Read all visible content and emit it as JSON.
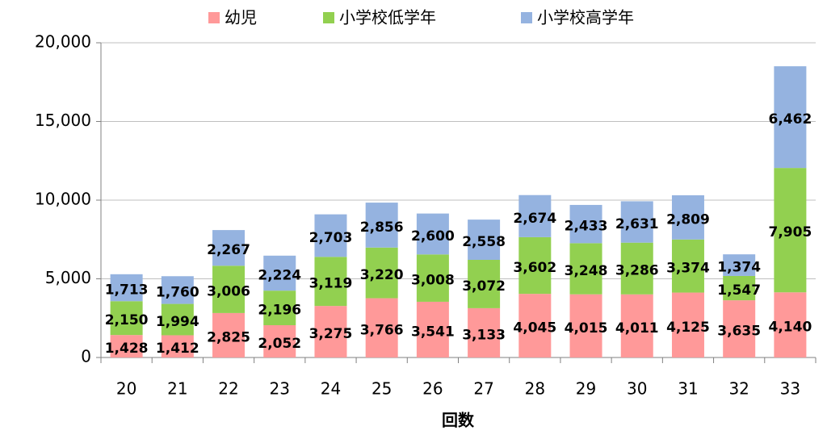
{
  "chart_data": {
    "type": "stacked_bar",
    "x_label": "回数",
    "categories": [
      "20",
      "21",
      "22",
      "23",
      "24",
      "25",
      "26",
      "27",
      "28",
      "29",
      "30",
      "31",
      "32",
      "33"
    ],
    "series": [
      {
        "name": "幼児",
        "color": "#ff9999",
        "values": [
          1428,
          1412,
          2825,
          2052,
          3275,
          3766,
          3541,
          3133,
          4045,
          4015,
          4011,
          4125,
          3635,
          4140
        ],
        "value_labels": [
          "1,428",
          "1,412",
          "2,825",
          "2,052",
          "3,275",
          "3,766",
          "3,541",
          "3,133",
          "4,045",
          "4,015",
          "4,011",
          "4,125",
          "3,635",
          "4,140"
        ]
      },
      {
        "name": "小学校低学年",
        "color": "#92d050",
        "values": [
          2150,
          1994,
          3006,
          2196,
          3119,
          3220,
          3008,
          3072,
          3602,
          3248,
          3286,
          3374,
          1547,
          7905
        ],
        "value_labels": [
          "2,150",
          "1,994",
          "3,006",
          "2,196",
          "3,119",
          "3,220",
          "3,008",
          "3,072",
          "3,602",
          "3,248",
          "3,286",
          "3,374",
          "1,547",
          "7,905"
        ]
      },
      {
        "name": "小学校高学年",
        "color": "#95b3e0",
        "values": [
          1713,
          1760,
          2267,
          2224,
          2703,
          2856,
          2600,
          2558,
          2674,
          2433,
          2631,
          2809,
          1374,
          6462
        ],
        "value_labels": [
          "1,713",
          "1,760",
          "2,267",
          "2,224",
          "2,703",
          "2,856",
          "2,600",
          "2,558",
          "2,674",
          "2,433",
          "2,631",
          "2,809",
          "1,374",
          "6,462"
        ]
      }
    ],
    "ylim": [
      0,
      20000
    ],
    "yticks": [
      0,
      {
        "value": 5000,
        "label": "5,000"
      },
      {
        "value": 10000,
        "label": "10,000"
      },
      {
        "value": 15000,
        "label": "15,000"
      },
      {
        "value": 20000,
        "label": "20,000"
      }
    ],
    "grid": true
  }
}
